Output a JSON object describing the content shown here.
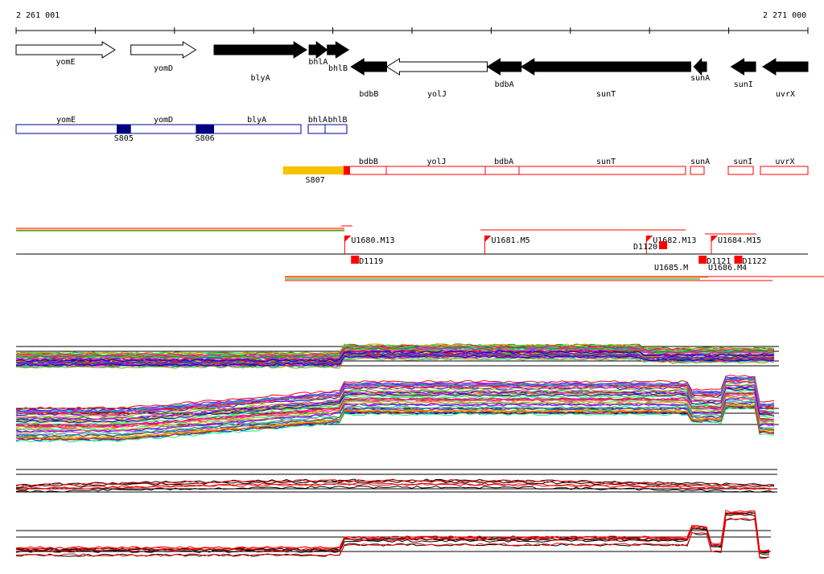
{
  "coords": {
    "start": "2 261 001",
    "end": "2 271 000"
  },
  "genes": [
    {
      "name": "yomE",
      "strand": "+",
      "filled": false,
      "start": 0.0,
      "end": 0.125
    },
    {
      "name": "yomD",
      "strand": "+",
      "filled": false,
      "start": 0.145,
      "end": 0.227
    },
    {
      "name": "blyA",
      "strand": "+",
      "filled": true,
      "start": 0.25,
      "end": 0.367
    },
    {
      "name": "bhlA",
      "strand": "+",
      "filled": true,
      "start": 0.37,
      "end": 0.393
    },
    {
      "name": "bhlB",
      "strand": "+",
      "filled": true,
      "start": 0.393,
      "end": 0.42
    },
    {
      "name": "bdbB",
      "strand": "-",
      "filled": true,
      "start": 0.423,
      "end": 0.468
    },
    {
      "name": "yolJ",
      "strand": "-",
      "filled": false,
      "start": 0.468,
      "end": 0.595
    },
    {
      "name": "bdbA",
      "strand": "-",
      "filled": true,
      "start": 0.595,
      "end": 0.638
    },
    {
      "name": "sunT",
      "strand": "-",
      "filled": true,
      "start": 0.638,
      "end": 0.852
    },
    {
      "name": "sunA",
      "strand": "-",
      "filled": true,
      "start": 0.856,
      "end": 0.872
    },
    {
      "name": "sunI",
      "strand": "-",
      "filled": true,
      "start": 0.903,
      "end": 0.934
    },
    {
      "name": "uvrX",
      "strand": "-",
      "filled": true,
      "start": 0.943,
      "end": 1.0
    }
  ],
  "plus_track": {
    "labels": [
      {
        "name": "yomE",
        "at": 0.063
      },
      {
        "name": "yomD",
        "at": 0.186
      },
      {
        "name": "blyA",
        "at": 0.304
      },
      {
        "name": "bhlA",
        "at": 0.381
      },
      {
        "name": "bhlB",
        "at": 0.406
      }
    ],
    "features": [
      {
        "name": "S805",
        "start": 0.127,
        "end": 0.145
      },
      {
        "name": "S806",
        "start": 0.227,
        "end": 0.25
      }
    ]
  },
  "minus_track": {
    "labels": [
      {
        "name": "bdbB",
        "at": 0.445
      },
      {
        "name": "yolJ",
        "at": 0.531
      },
      {
        "name": "bdbA",
        "at": 0.616
      },
      {
        "name": "sunT",
        "at": 0.745
      },
      {
        "name": "sunA",
        "at": 0.864
      },
      {
        "name": "sunI",
        "at": 0.918
      },
      {
        "name": "uvrX",
        "at": 0.971
      }
    ],
    "features": [
      {
        "name": "S807",
        "start": 0.337,
        "end": 0.417,
        "color": "#f7c200"
      }
    ]
  },
  "upstream_sites": [
    {
      "name": "U1680.M13",
      "at": 0.415
    },
    {
      "name": "U1681.M5",
      "at": 0.592
    },
    {
      "name": "U1682.M13",
      "at": 0.796
    },
    {
      "name": "U1684.M15",
      "at": 0.878
    }
  ],
  "downstream_sites": [
    {
      "name": "D1119",
      "at": 0.423
    },
    {
      "name": "D1120",
      "at": 0.81
    },
    {
      "name": "D1121",
      "at": 0.862
    },
    {
      "name": "D1122",
      "at": 0.907
    }
  ],
  "overlap_labels": [
    "U1686.M4",
    "U1685.M"
  ],
  "colors": {
    "accent": "#ff0000",
    "plus_track": "#0000a0",
    "minus_track": "#ff0000",
    "feature_block": "#000080",
    "upstream_flag": "#ff0000",
    "arrow_fill": "#000000"
  }
}
